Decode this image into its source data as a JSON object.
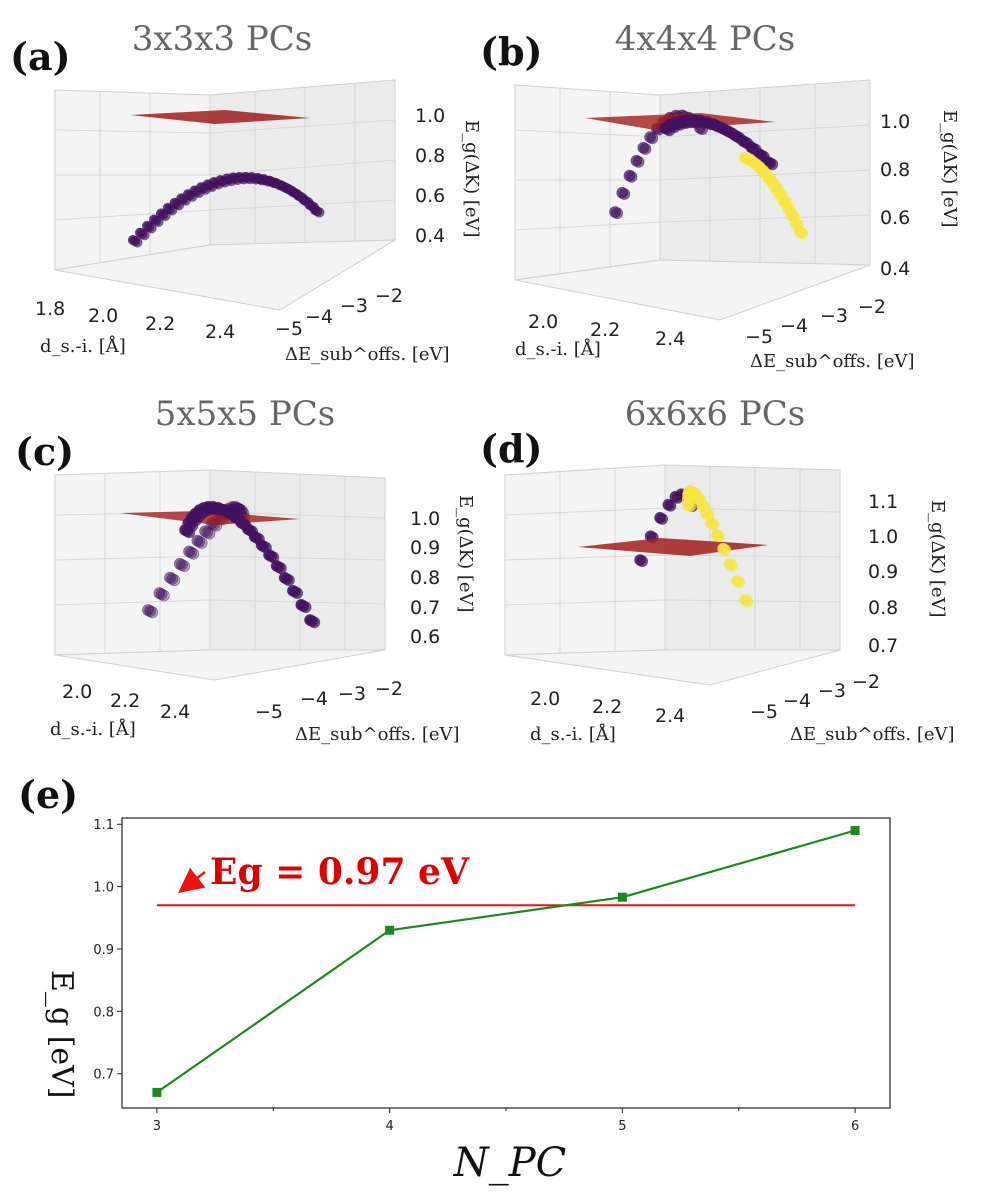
{
  "panels": [
    {
      "id": "a",
      "label": "(a)",
      "title": "3x3x3 PCs",
      "z_ticks": [
        "1.0",
        "0.8",
        "0.6",
        "0.4"
      ],
      "x_ticks": [
        "1.8",
        "2.0",
        "2.2",
        "2.4"
      ],
      "y_ticks": [
        "−5",
        "−4",
        "−3",
        "−2"
      ],
      "z_label": "E_g(ΔK) [eV]",
      "x_label": "d_s.-i. [Å]",
      "y_label": "ΔE_sub^offs. [eV]"
    },
    {
      "id": "b",
      "label": "(b)",
      "title": "4x4x4 PCs",
      "z_ticks": [
        "1.0",
        "0.8",
        "0.6",
        "0.4"
      ],
      "x_ticks": [
        "2.0",
        "2.2",
        "2.4"
      ],
      "y_ticks": [
        "−5",
        "−4",
        "−3",
        "−2"
      ],
      "z_label": "E_g(ΔK) [eV]",
      "x_label": "d_s.-i. [Å]",
      "y_label": "ΔE_sub^offs. [eV]"
    },
    {
      "id": "c",
      "label": "(c)",
      "title": "5x5x5 PCs",
      "z_ticks": [
        "1.0",
        "0.9",
        "0.8",
        "0.7",
        "0.6"
      ],
      "x_ticks": [
        "2.0",
        "2.2",
        "2.4"
      ],
      "y_ticks": [
        "−5",
        "−4",
        "−3",
        "−2"
      ],
      "z_label": "E_g(ΔK) [eV]",
      "x_label": "d_s.-i. [Å]",
      "y_label": "ΔE_sub^offs. [eV]"
    },
    {
      "id": "d",
      "label": "(d)",
      "title": "6x6x6 PCs",
      "z_ticks": [
        "1.1",
        "1.0",
        "0.9",
        "0.8",
        "0.7"
      ],
      "x_ticks": [
        "2.0",
        "2.2",
        "2.4"
      ],
      "y_ticks": [
        "−5",
        "−4",
        "−3",
        "−2"
      ],
      "z_label": "E_g(ΔK) [eV]",
      "x_label": "d_s.-i. [Å]",
      "y_label": "ΔE_sub^offs. [eV]"
    }
  ],
  "chart_data": {
    "type": "line",
    "panel_label": "(e)",
    "title": "",
    "xlabel": "N_PC",
    "ylabel": "E_g [eV]",
    "x": [
      3,
      4,
      5,
      6
    ],
    "series": [
      {
        "name": "E_g",
        "values": [
          0.67,
          0.93,
          0.983,
          1.09
        ],
        "color": "#1a8a1a"
      }
    ],
    "reference_line": {
      "value": 0.97,
      "color": "#ee1111",
      "annotation": "Eg = 0.97 eV"
    },
    "xlim": [
      2.85,
      6.15
    ],
    "ylim": [
      0.645,
      1.11
    ],
    "xticks": [
      "3",
      "4",
      "5",
      "6"
    ],
    "yticks": [
      "0.7",
      "0.8",
      "0.9",
      "1.0",
      "1.1"
    ]
  },
  "colors": {
    "purple": "#44135f",
    "yellow": "#f5e642",
    "plane": "#a11d1d",
    "line": "#1a8a1a",
    "ref": "#ee1111"
  }
}
